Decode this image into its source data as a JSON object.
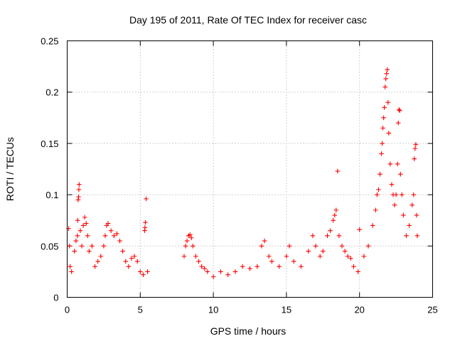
{
  "chart_data": {
    "type": "scatter",
    "title": "Day 195 of 2011, Rate Of TEC Index for receiver casc",
    "xlabel": "GPS time / hours",
    "ylabel": "ROTI / TECUs",
    "xlim": [
      0,
      25
    ],
    "ylim": [
      0,
      0.25
    ],
    "xticks": [
      0,
      5,
      10,
      15,
      20,
      25
    ],
    "xtick_labels": [
      "0",
      "5",
      "10",
      "15",
      "20",
      "25"
    ],
    "yticks": [
      0,
      0.05,
      0.1,
      0.15,
      0.2,
      0.25
    ],
    "ytick_labels": [
      "0",
      "0.05",
      "0.1",
      "0.15",
      "0.2",
      "0.25"
    ],
    "grid": true,
    "marker": "plus",
    "color": "#ff0000",
    "series": [
      {
        "name": "ROTI",
        "points": [
          [
            0.1,
            0.067
          ],
          [
            0.15,
            0.05
          ],
          [
            0.2,
            0.03
          ],
          [
            0.3,
            0.025
          ],
          [
            0.5,
            0.045
          ],
          [
            0.6,
            0.055
          ],
          [
            0.7,
            0.06
          ],
          [
            0.72,
            0.075
          ],
          [
            0.75,
            0.095
          ],
          [
            0.78,
            0.098
          ],
          [
            0.8,
            0.105
          ],
          [
            0.82,
            0.11
          ],
          [
            0.9,
            0.065
          ],
          [
            1.0,
            0.05
          ],
          [
            1.1,
            0.07
          ],
          [
            1.2,
            0.078
          ],
          [
            1.3,
            0.072
          ],
          [
            1.4,
            0.06
          ],
          [
            1.5,
            0.045
          ],
          [
            1.7,
            0.05
          ],
          [
            1.9,
            0.03
          ],
          [
            2.1,
            0.035
          ],
          [
            2.3,
            0.04
          ],
          [
            2.5,
            0.05
          ],
          [
            2.6,
            0.06
          ],
          [
            2.7,
            0.07
          ],
          [
            2.8,
            0.072
          ],
          [
            3.0,
            0.065
          ],
          [
            3.2,
            0.06
          ],
          [
            3.4,
            0.062
          ],
          [
            3.6,
            0.055
          ],
          [
            3.8,
            0.045
          ],
          [
            4.0,
            0.035
          ],
          [
            4.2,
            0.03
          ],
          [
            4.4,
            0.038
          ],
          [
            4.6,
            0.04
          ],
          [
            4.8,
            0.035
          ],
          [
            5.0,
            0.025
          ],
          [
            5.2,
            0.022
          ],
          [
            5.3,
            0.065
          ],
          [
            5.32,
            0.068
          ],
          [
            5.35,
            0.073
          ],
          [
            5.4,
            0.096
          ],
          [
            5.5,
            0.025
          ],
          [
            8.0,
            0.04
          ],
          [
            8.1,
            0.05
          ],
          [
            8.2,
            0.055
          ],
          [
            8.3,
            0.06
          ],
          [
            8.4,
            0.061
          ],
          [
            8.5,
            0.058
          ],
          [
            8.6,
            0.05
          ],
          [
            8.8,
            0.04
          ],
          [
            9.0,
            0.035
          ],
          [
            9.2,
            0.03
          ],
          [
            9.4,
            0.028
          ],
          [
            9.6,
            0.025
          ],
          [
            10.0,
            0.02
          ],
          [
            10.5,
            0.025
          ],
          [
            11.0,
            0.022
          ],
          [
            11.5,
            0.025
          ],
          [
            12.0,
            0.03
          ],
          [
            12.5,
            0.028
          ],
          [
            13.0,
            0.03
          ],
          [
            13.3,
            0.05
          ],
          [
            13.5,
            0.055
          ],
          [
            13.8,
            0.04
          ],
          [
            14.0,
            0.035
          ],
          [
            14.5,
            0.03
          ],
          [
            15.0,
            0.04
          ],
          [
            15.2,
            0.05
          ],
          [
            15.5,
            0.035
          ],
          [
            16.0,
            0.03
          ],
          [
            16.5,
            0.045
          ],
          [
            16.8,
            0.06
          ],
          [
            17.0,
            0.05
          ],
          [
            17.3,
            0.04
          ],
          [
            17.5,
            0.045
          ],
          [
            17.8,
            0.06
          ],
          [
            18.0,
            0.065
          ],
          [
            18.2,
            0.075
          ],
          [
            18.3,
            0.08
          ],
          [
            18.4,
            0.085
          ],
          [
            18.5,
            0.123
          ],
          [
            18.6,
            0.06
          ],
          [
            18.8,
            0.05
          ],
          [
            19.0,
            0.045
          ],
          [
            19.2,
            0.04
          ],
          [
            19.4,
            0.038
          ],
          [
            19.6,
            0.03
          ],
          [
            19.9,
            0.025
          ],
          [
            20.0,
            0.066
          ],
          [
            20.3,
            0.04
          ],
          [
            20.6,
            0.05
          ],
          [
            20.9,
            0.07
          ],
          [
            21.1,
            0.085
          ],
          [
            21.2,
            0.1
          ],
          [
            21.3,
            0.105
          ],
          [
            21.4,
            0.12
          ],
          [
            21.5,
            0.14
          ],
          [
            21.55,
            0.15
          ],
          [
            21.6,
            0.165
          ],
          [
            21.65,
            0.175
          ],
          [
            21.7,
            0.185
          ],
          [
            21.75,
            0.205
          ],
          [
            21.8,
            0.213
          ],
          [
            21.85,
            0.218
          ],
          [
            21.9,
            0.222
          ],
          [
            21.95,
            0.19
          ],
          [
            22.0,
            0.16
          ],
          [
            22.1,
            0.13
          ],
          [
            22.2,
            0.11
          ],
          [
            22.3,
            0.1
          ],
          [
            22.4,
            0.09
          ],
          [
            22.5,
            0.1
          ],
          [
            22.6,
            0.13
          ],
          [
            22.65,
            0.17
          ],
          [
            22.7,
            0.183
          ],
          [
            22.75,
            0.182
          ],
          [
            22.8,
            0.12
          ],
          [
            22.9,
            0.1
          ],
          [
            23.0,
            0.08
          ],
          [
            23.2,
            0.06
          ],
          [
            23.4,
            0.07
          ],
          [
            23.6,
            0.09
          ],
          [
            23.7,
            0.1
          ],
          [
            23.75,
            0.135
          ],
          [
            23.8,
            0.145
          ],
          [
            23.85,
            0.149
          ],
          [
            23.9,
            0.08
          ],
          [
            23.95,
            0.06
          ]
        ]
      }
    ]
  }
}
